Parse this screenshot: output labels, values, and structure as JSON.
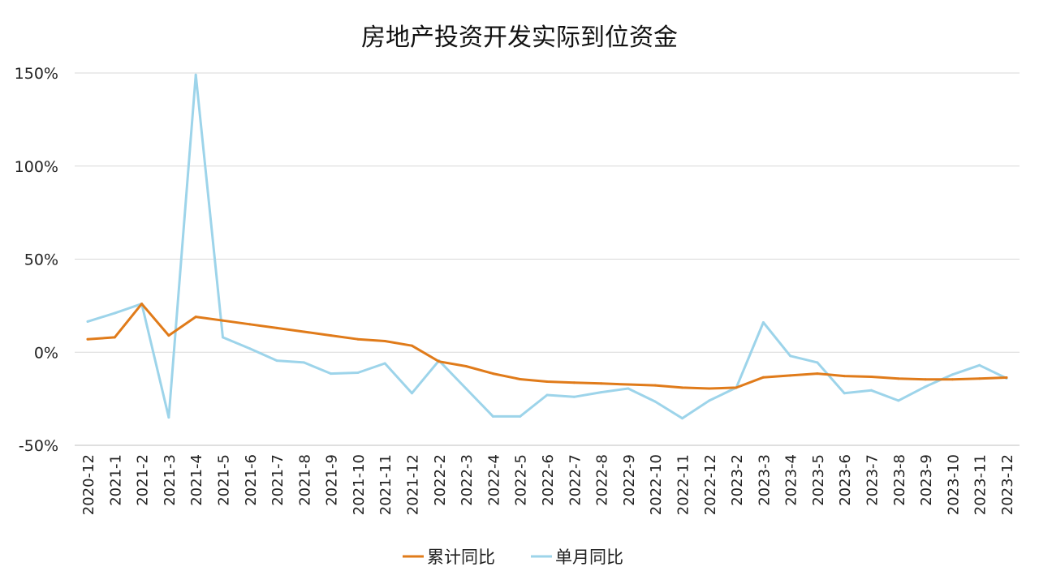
{
  "chart_data": {
    "type": "line",
    "title": "房地产投资开发实际到位资金",
    "xlabel": "",
    "ylabel": "",
    "ylim": [
      -50,
      150
    ],
    "yticks": [
      -50,
      0,
      50,
      100,
      150
    ],
    "ytick_labels": [
      "-50%",
      "0%",
      "50%",
      "100%",
      "150%"
    ],
    "grid": true,
    "legend_position": "bottom",
    "categories": [
      "2020-12",
      "2021-1",
      "2021-2",
      "2021-3",
      "2021-4",
      "2021-5",
      "2021-6",
      "2021-7",
      "2021-8",
      "2021-9",
      "2021-10",
      "2021-11",
      "2021-12",
      "2022-2",
      "2022-3",
      "2022-4",
      "2022-5",
      "2022-6",
      "2022-7",
      "2022-8",
      "2022-9",
      "2022-10",
      "2022-11",
      "2022-12",
      "2023-2",
      "2023-3",
      "2023-4",
      "2023-5",
      "2023-6",
      "2023-7",
      "2023-8",
      "2023-9",
      "2023-10",
      "2023-11",
      "2023-12"
    ],
    "series": [
      {
        "name": "累计同比",
        "color": "#E07B1A",
        "values": [
          7,
          8,
          26,
          9,
          19,
          17,
          15,
          13,
          11,
          9,
          7,
          6,
          3.5,
          -5,
          -7.5,
          -11.5,
          -14.5,
          -15.8,
          -16.3,
          -16.8,
          -17.3,
          -17.8,
          -19,
          -19.5,
          -19,
          -13.5,
          -12.5,
          -11.5,
          -12.8,
          -13.2,
          -14.2,
          -14.6,
          -14.6,
          -14.2,
          -13.6
        ]
      },
      {
        "name": "单月同比",
        "color": "#9DD4EA",
        "values": [
          16.5,
          21,
          26,
          -35,
          149,
          8,
          2,
          -4.5,
          -5.5,
          -11.5,
          -11,
          -6,
          -22,
          -4.5,
          -19.5,
          -34.5,
          -34.5,
          -23,
          -24,
          -21.5,
          -19.5,
          -26.5,
          -35.5,
          -26,
          -19,
          16,
          -2,
          -5.5,
          -22,
          -20.5,
          -26,
          -18.5,
          -12,
          -7,
          -14
        ]
      }
    ]
  }
}
